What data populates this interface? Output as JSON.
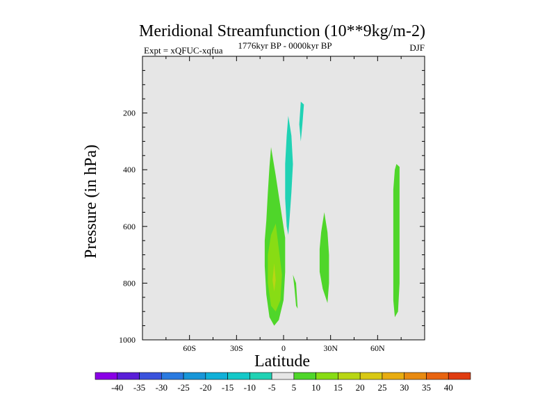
{
  "chart_data": {
    "type": "heatmap",
    "title": "Meridional Streamfunction (10**9kg/m-2)",
    "subtitle_left": "Expt = xQFUC-xqfua",
    "subtitle_center": "1776kyr BP - 0000kyr BP",
    "subtitle_right": "DJF",
    "xlabel": "Latitude",
    "ylabel": "Pressure (in hPa)",
    "xlim": [
      -90,
      90
    ],
    "ylim": [
      1000,
      0
    ],
    "x_ticks": [
      {
        "value": -60,
        "label": "60S"
      },
      {
        "value": -30,
        "label": "30S"
      },
      {
        "value": 0,
        "label": "0"
      },
      {
        "value": 30,
        "label": "30N"
      },
      {
        "value": 60,
        "label": "60N"
      }
    ],
    "y_ticks": [
      {
        "value": 200,
        "label": "200"
      },
      {
        "value": 400,
        "label": "400"
      },
      {
        "value": 600,
        "label": "600"
      },
      {
        "value": 800,
        "label": "800"
      },
      {
        "value": 1000,
        "label": "1000"
      }
    ],
    "colorbar": {
      "levels": [
        "-40",
        "-35",
        "-30",
        "-25",
        "-20",
        "-15",
        "-10",
        "-5",
        "5",
        "10",
        "15",
        "20",
        "25",
        "30",
        "35",
        "40"
      ],
      "colors": [
        "#8a00e6",
        "#5a1fd8",
        "#3a52dc",
        "#2a7ae0",
        "#1896d8",
        "#10b0d8",
        "#14c8c8",
        "#20d2b4",
        "#e6e6e6",
        "#4fd62a",
        "#88dc14",
        "#b8d614",
        "#d8c814",
        "#e8ac10",
        "#e88a10",
        "#e86410",
        "#e03c10"
      ]
    },
    "background_color": "#e6e6e6",
    "regions": [
      {
        "name": "sh-tropical-positive-5-10",
        "level": "5 to 10",
        "color": "#4fd62a",
        "outline": [
          [
            -8,
            320
          ],
          [
            -5,
            420
          ],
          [
            -2,
            530
          ],
          [
            1,
            640
          ],
          [
            1,
            760
          ],
          [
            0,
            860
          ],
          [
            -3,
            930
          ],
          [
            -6,
            950
          ],
          [
            -9,
            920
          ],
          [
            -11,
            840
          ],
          [
            -12,
            740
          ],
          [
            -12,
            650
          ],
          [
            -11,
            580
          ],
          [
            -10,
            480
          ],
          [
            -9,
            390
          ]
        ]
      },
      {
        "name": "sh-tropical-positive-10-15",
        "level": "10 to 15",
        "color": "#88dc14",
        "outline": [
          [
            -5,
            590
          ],
          [
            -3,
            680
          ],
          [
            -1,
            770
          ],
          [
            -2,
            860
          ],
          [
            -5,
            900
          ],
          [
            -8,
            880
          ],
          [
            -10,
            800
          ],
          [
            -10,
            700
          ],
          [
            -8,
            630
          ]
        ]
      },
      {
        "name": "sh-tropical-positive-15-20",
        "level": "15 to 20",
        "color": "#b8d614",
        "outline": [
          [
            -6,
            730
          ],
          [
            -5,
            790
          ],
          [
            -6,
            830
          ],
          [
            -7,
            790
          ]
        ]
      },
      {
        "name": "eq-upper-negative-cell",
        "level": "-10 to -5",
        "color": "#20d2b4",
        "outline": [
          [
            3,
            210
          ],
          [
            5,
            280
          ],
          [
            6,
            380
          ],
          [
            5,
            480
          ],
          [
            4,
            560
          ],
          [
            3,
            630
          ],
          [
            2,
            600
          ],
          [
            1,
            500
          ],
          [
            1,
            380
          ],
          [
            2,
            280
          ]
        ]
      },
      {
        "name": "eq-upper-negative-filament",
        "level": "-10 to -5",
        "color": "#20d2b4",
        "outline": [
          [
            11,
            160
          ],
          [
            13,
            170
          ],
          [
            12,
            240
          ],
          [
            11,
            300
          ],
          [
            10,
            240
          ]
        ]
      },
      {
        "name": "eq-lower-positive-streak",
        "level": "5 to 10",
        "color": "#4fd62a",
        "outline": [
          [
            6,
            770
          ],
          [
            8,
            800
          ],
          [
            9,
            890
          ],
          [
            8,
            880
          ],
          [
            7,
            820
          ]
        ]
      },
      {
        "name": "nh-subtropical-positive",
        "level": "5 to 10",
        "color": "#4fd62a",
        "outline": [
          [
            26,
            550
          ],
          [
            28,
            620
          ],
          [
            29,
            700
          ],
          [
            29,
            800
          ],
          [
            28,
            870
          ],
          [
            25,
            820
          ],
          [
            23,
            760
          ],
          [
            23,
            680
          ],
          [
            24,
            620
          ]
        ]
      },
      {
        "name": "nh-highlat-positive",
        "level": "5 to 10",
        "color": "#4fd62a",
        "outline": [
          [
            72,
            380
          ],
          [
            74,
            390
          ],
          [
            74,
            500
          ],
          [
            74,
            650
          ],
          [
            74,
            800
          ],
          [
            73,
            900
          ],
          [
            71,
            920
          ],
          [
            70,
            860
          ],
          [
            70,
            720
          ],
          [
            70,
            580
          ],
          [
            70,
            470
          ],
          [
            71,
            400
          ]
        ]
      }
    ]
  }
}
